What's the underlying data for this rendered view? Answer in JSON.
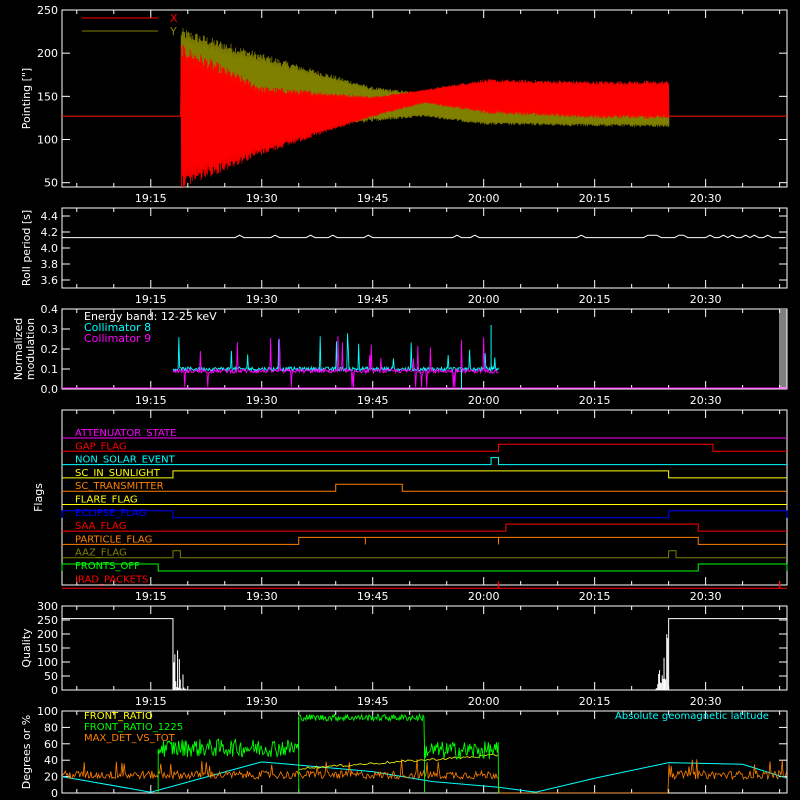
{
  "chart_data": [
    {
      "type": "line",
      "ylabel": "Pointing [\"]",
      "ylim": [
        45,
        250
      ],
      "yticks": [
        "50",
        "100",
        "150",
        "200",
        "250"
      ],
      "xticks": [
        "19:15",
        "19:30",
        "19:45",
        "20:00",
        "20:15",
        "20:30"
      ],
      "legend": [
        "X",
        "Y"
      ],
      "series": [
        {
          "name": "X",
          "color": "#ff0000",
          "x": [
            "19:03",
            "19:19",
            "19:19",
            "19:30",
            "19:45",
            "19:52",
            "20:00",
            "20:15",
            "20:25",
            "20:25",
            "20:41"
          ],
          "center": [
            127,
            127,
            127,
            122,
            138,
            150,
            150,
            146,
            146,
            127,
            127
          ],
          "half_range": [
            0,
            0,
            85,
            40,
            12,
            8,
            20,
            22,
            22,
            0,
            0
          ]
        },
        {
          "name": "Y",
          "color": "#808000",
          "x": [
            "19:03",
            "19:19",
            "19:19",
            "19:30",
            "19:45",
            "19:52",
            "20:00",
            "20:15",
            "20:25",
            "20:25",
            "20:41"
          ],
          "center": [
            127,
            127,
            160,
            152,
            141,
            140,
            132,
            132,
            132,
            127,
            127
          ],
          "half_range": [
            0,
            0,
            70,
            48,
            20,
            14,
            15,
            17,
            18,
            0,
            0
          ]
        }
      ]
    },
    {
      "type": "line",
      "ylabel": "Roll period [s]",
      "ylim": [
        3.5,
        4.5
      ],
      "yticks": [
        "3.6",
        "3.8",
        "4.0",
        "4.2",
        "4.4"
      ],
      "xticks": [
        "19:15",
        "19:30",
        "19:45",
        "20:00",
        "20:15",
        "20:30"
      ],
      "series": [
        {
          "name": "",
          "color": "#ffffff",
          "base": 4.13
        }
      ]
    },
    {
      "type": "line",
      "ylabel": "Normalized modulation",
      "ylim": [
        0,
        0.4
      ],
      "yticks": [
        "0.0",
        "0.1",
        "0.2",
        "0.3",
        "0.4"
      ],
      "xticks": [
        "19:15",
        "19:30",
        "19:45",
        "20:00",
        "20:15",
        "20:30"
      ],
      "legend": [
        "Energy band: 12-25 keV",
        "Collimator 8",
        "Collimator 9"
      ],
      "legend_colors": [
        "#ffffff",
        "#00ffff",
        "#ff00ff"
      ],
      "series": [
        {
          "name": "Collimator 8",
          "color": "#00ffff",
          "x_range": [
            "19:18",
            "20:02"
          ],
          "base": 0.1
        },
        {
          "name": "Collimator 9",
          "color": "#ff00ff",
          "x_range": [
            "19:18",
            "20:02"
          ],
          "base": 0.09
        }
      ]
    },
    {
      "type": "line",
      "ylabel": "Flags",
      "xticks": [
        "19:15",
        "19:30",
        "19:45",
        "20:00",
        "20:15",
        "20:30"
      ],
      "flags": [
        {
          "name": "ATTENUATOR_STATE",
          "color": "#ff00ff",
          "on": []
        },
        {
          "name": "GAP_FLAG",
          "color": "#ff0000",
          "on": [
            [
              "20:02",
              "20:31"
            ]
          ]
        },
        {
          "name": "NON_SOLAR_EVENT",
          "color": "#00ffff",
          "on": [
            [
              "20:01",
              "20:02"
            ]
          ]
        },
        {
          "name": "SC_IN_SUNLIGHT",
          "color": "#ffff00",
          "on": [
            [
              "19:18",
              "20:25"
            ]
          ]
        },
        {
          "name": "SC_TRANSMITTER",
          "color": "#ff8000",
          "on": [
            [
              "19:40",
              "19:49"
            ]
          ]
        },
        {
          "name": "FLARE_FLAG",
          "color": "#ffff00",
          "on": []
        },
        {
          "name": "ECLIPSE_FLAG",
          "color": "#0000ff",
          "on": [
            [
              "19:03",
              "19:18"
            ],
            [
              "20:25",
              "20:41"
            ]
          ]
        },
        {
          "name": "SAA_FLAG",
          "color": "#ff0000",
          "on": [
            [
              "20:03",
              "20:29"
            ]
          ]
        },
        {
          "name": "PARTICLE_FLAG",
          "color": "#ff8000",
          "on": [
            [
              "19:35",
              "19:44"
            ],
            [
              "19:44",
              "20:02"
            ],
            [
              "20:02",
              "20:29"
            ]
          ]
        },
        {
          "name": "AAZ_FLAG",
          "color": "#808000",
          "on": [
            [
              "19:18",
              "19:19"
            ],
            [
              "20:25",
              "20:26"
            ]
          ]
        },
        {
          "name": "FRONTS_OFF",
          "color": "#00ff00",
          "on": [
            [
              "19:03",
              "19:16"
            ],
            [
              "20:29",
              "20:41"
            ]
          ]
        },
        {
          "name": "IRAD_PACKETS",
          "color": "#ff0000",
          "spikes": [
            "20:02",
            "20:40"
          ]
        }
      ]
    },
    {
      "type": "line",
      "ylabel": "Quality",
      "ylim": [
        0,
        300
      ],
      "yticks": [
        "0",
        "50",
        "100",
        "150",
        "200",
        "250",
        "300"
      ],
      "xticks": [
        "19:15",
        "19:30",
        "19:45",
        "20:00",
        "20:15",
        "20:30"
      ],
      "series": [
        {
          "name": "",
          "color": "#ffffff",
          "x": [
            "19:03",
            "19:18",
            "19:18",
            "20:25",
            "20:25",
            "20:41"
          ],
          "y": [
            255,
            255,
            0,
            0,
            255,
            255
          ]
        }
      ]
    },
    {
      "type": "line",
      "ylabel": "Degrees or %",
      "ylim": [
        0,
        100
      ],
      "yticks": [
        "0",
        "20",
        "40",
        "60",
        "80",
        "100"
      ],
      "legend": [
        "FRONT_RATIO",
        "FRONT_RATIO_1225",
        "MAX_DET_VS_TOT"
      ],
      "legend_colors": [
        "#ffff00",
        "#00ff00",
        "#ff8000"
      ],
      "annotation": "Absolute geomagnetic latitude",
      "annotation_color": "#00ffff",
      "series": [
        {
          "name": "FRONT_RATIO",
          "color": "#ffff00"
        },
        {
          "name": "FRONT_RATIO_1225",
          "color": "#00ff00",
          "segments": [
            [
              "19:16",
              "19:35",
              55
            ],
            [
              "19:35",
              "19:52",
              92
            ],
            [
              "19:52",
              "20:02",
              52
            ]
          ]
        },
        {
          "name": "MAX_DET_VS_TOT",
          "color": "#ff8000",
          "base": 22
        },
        {
          "name": "Absolute geomagnetic latitude",
          "color": "#00ffff",
          "x": [
            "19:03",
            "19:15",
            "19:30",
            "19:45",
            "19:53",
            "20:02",
            "20:07",
            "20:15",
            "20:25",
            "20:35",
            "20:41"
          ],
          "y": [
            20,
            1,
            38,
            26,
            14,
            7,
            1,
            18,
            37,
            35,
            18
          ]
        }
      ]
    }
  ]
}
